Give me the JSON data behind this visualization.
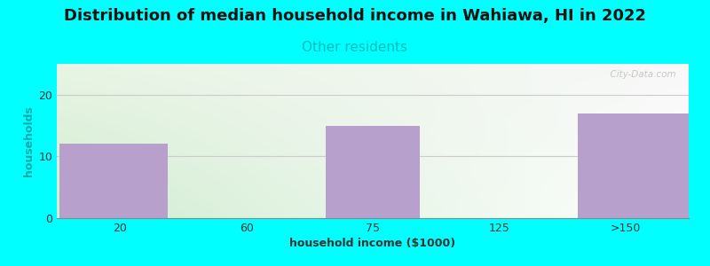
{
  "title": "Distribution of median household income in Wahiawa, HI in 2022",
  "subtitle": "Other residents",
  "xlabel": "household income ($1000)",
  "ylabel": "households",
  "categories": [
    "20",
    "60",
    "75",
    "125",
    ">150"
  ],
  "values": [
    12,
    0,
    15,
    0,
    17
  ],
  "bar_color": "#b8a0cc",
  "background_color": "#00FFFF",
  "plot_bg_topleft": "#e8f5e4",
  "plot_bg_topright": "#f8f8f8",
  "plot_bg_bottomleft": "#d0ecd0",
  "plot_bg_bottomright": "#ffffff",
  "ylim": [
    0,
    25
  ],
  "yticks": [
    0,
    10,
    20
  ],
  "title_fontsize": 13,
  "subtitle_fontsize": 11,
  "subtitle_color": "#00bbbb",
  "axis_label_fontsize": 9,
  "tick_fontsize": 9,
  "watermark": "  City-Data.com",
  "grid_color": "#cccccc"
}
